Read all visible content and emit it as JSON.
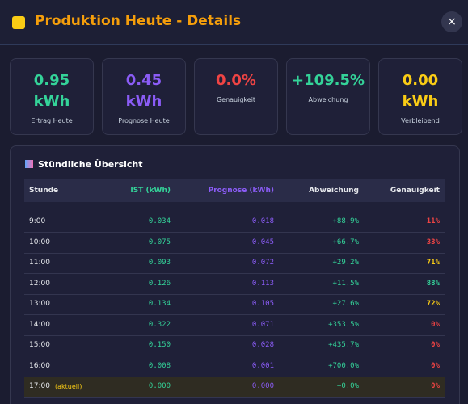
{
  "header": {
    "title": "Produktion Heute - Details",
    "close": "×"
  },
  "cards": [
    {
      "value": "0.95",
      "unit": "kWh",
      "label": "Ertrag Heute",
      "color": "#34d399"
    },
    {
      "value": "0.45",
      "unit": "kWh",
      "label": "Prognose Heute",
      "color": "#8b5cf6"
    },
    {
      "value": "0.0%",
      "label": "Genauigkeit",
      "color": "#ef4444"
    },
    {
      "value": "+109.5%",
      "label": "Abweichung",
      "color": "#34d399"
    },
    {
      "value": "0.00",
      "unit": "kWh",
      "label": "Verbleibend",
      "color": "#facc15"
    }
  ],
  "section": {
    "title": "Stündliche Übersicht"
  },
  "table": {
    "headers": [
      "Stunde",
      "IST (kWh)",
      "Prognose (kWh)",
      "Abweichung",
      "Genauigkeit"
    ],
    "rows": [
      [
        "9:00",
        "0.034",
        "0.018",
        "+88.9%",
        "11%"
      ],
      [
        "10:00",
        "0.075",
        "0.045",
        "+66.7%",
        "33%"
      ],
      [
        "11:00",
        "0.093",
        "0.072",
        "+29.2%",
        "71%"
      ],
      [
        "12:00",
        "0.126",
        "0.113",
        "+11.5%",
        "88%"
      ],
      [
        "13:00",
        "0.134",
        "0.105",
        "+27.6%",
        "72%"
      ],
      [
        "14:00",
        "0.322",
        "0.071",
        "+353.5%",
        "0%"
      ],
      [
        "15:00",
        "0.150",
        "0.028",
        "+435.7%",
        "0%"
      ],
      [
        "16:00",
        "0.008",
        "0.001",
        "+700.0%",
        "0%"
      ],
      [
        "17:00",
        "0.000",
        "0.000",
        "+0.0%",
        "0%"
      ]
    ],
    "current_row": 8,
    "current_note": "(aktuell)"
  }
}
